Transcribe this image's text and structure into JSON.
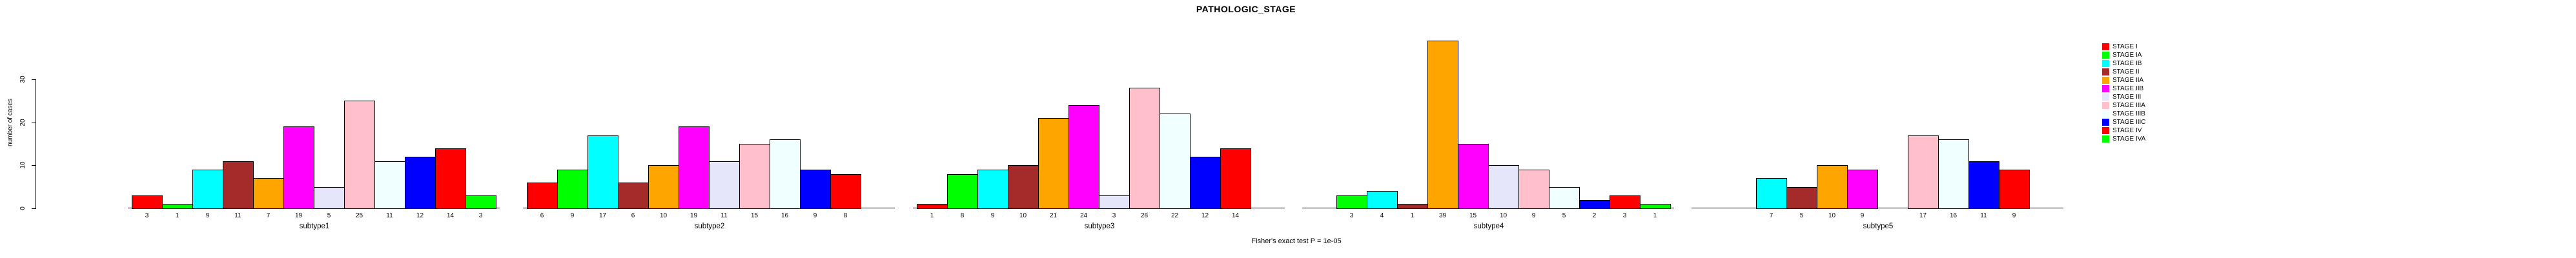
{
  "header": {
    "title": "PATHOLOGIC_STAGE"
  },
  "footer": {
    "caption": "Fisher's exact test P = 1e-05"
  },
  "y_axis": {
    "label": "number of cases",
    "ticks": [
      0,
      10,
      20,
      30
    ]
  },
  "legend": {
    "entries": [
      {
        "label": "STAGE I",
        "color": "#FF0000"
      },
      {
        "label": "STAGE IA",
        "color": "#00FF00"
      },
      {
        "label": "STAGE IB",
        "color": "#00FFFF"
      },
      {
        "label": "STAGE II",
        "color": "#A52A2A"
      },
      {
        "label": "STAGE IIA",
        "color": "#FFA500"
      },
      {
        "label": "STAGE IIB",
        "color": "#FF00FF"
      },
      {
        "label": "STAGE III",
        "color": "#E6E6FA"
      },
      {
        "label": "STAGE IIIA",
        "color": "#FFC0CB"
      },
      {
        "label": "STAGE IIIB",
        "color": "#F0FFFF"
      },
      {
        "label": "STAGE IIIC",
        "color": "#0000FF"
      },
      {
        "label": "STAGE IV",
        "color": "#FF0000"
      },
      {
        "label": "STAGE IVA",
        "color": "#00FF00"
      }
    ]
  },
  "chart_data": {
    "type": "bar",
    "title": "PATHOLOGIC_STAGE",
    "xlabel": "",
    "ylabel": "number of cases",
    "ylim": [
      0,
      30
    ],
    "y_ticks": [
      0,
      10,
      20,
      30
    ],
    "grid": false,
    "legend_position": "right",
    "annotation": "Fisher's exact test P = 1e-05",
    "categories": [
      "STAGE I",
      "STAGE IA",
      "STAGE IB",
      "STAGE II",
      "STAGE IIA",
      "STAGE IIB",
      "STAGE III",
      "STAGE IIIA",
      "STAGE IIIB",
      "STAGE IIIC",
      "STAGE IV",
      "STAGE IVA"
    ],
    "colors": [
      "#FF0000",
      "#00FF00",
      "#00FFFF",
      "#A52A2A",
      "#FFA500",
      "#FF00FF",
      "#E6E6FA",
      "#FFC0CB",
      "#F0FFFF",
      "#0000FF",
      "#FF0000",
      "#00FF00"
    ],
    "series": [
      {
        "name": "subtype1",
        "values": [
          3,
          1,
          9,
          11,
          7,
          19,
          5,
          25,
          11,
          12,
          14,
          3
        ]
      },
      {
        "name": "subtype2",
        "values": [
          6,
          9,
          17,
          6,
          10,
          19,
          11,
          15,
          16,
          9,
          8,
          null
        ]
      },
      {
        "name": "subtype3",
        "values": [
          1,
          8,
          9,
          10,
          21,
          24,
          3,
          28,
          22,
          12,
          14,
          null
        ]
      },
      {
        "name": "subtype4",
        "values": [
          null,
          3,
          4,
          1,
          39,
          15,
          10,
          9,
          5,
          2,
          3,
          1
        ]
      },
      {
        "name": "subtype5",
        "values": [
          null,
          null,
          7,
          5,
          10,
          9,
          null,
          17,
          16,
          11,
          9,
          null
        ]
      }
    ]
  }
}
